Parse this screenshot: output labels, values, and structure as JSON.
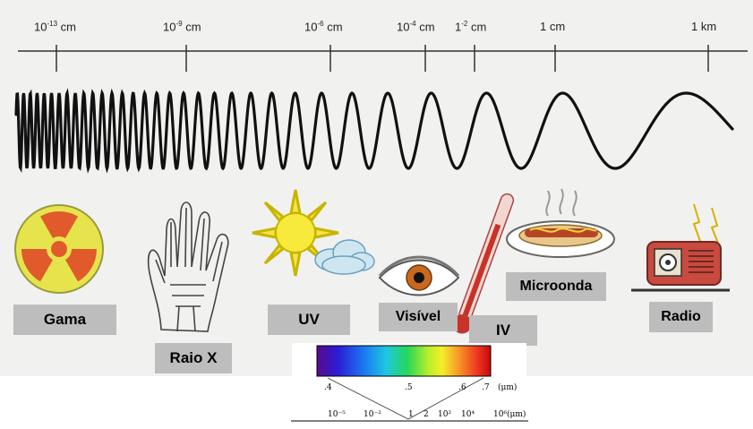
{
  "scale": {
    "ticks": [
      {
        "base": "10",
        "exp": "-13",
        "unit": "cm"
      },
      {
        "base": "10",
        "exp": "-9",
        "unit": "cm"
      },
      {
        "base": "10",
        "exp": "-6",
        "unit": "cm"
      },
      {
        "base": "10",
        "exp": "-4",
        "unit": "cm"
      },
      {
        "base": "1",
        "exp": "-2",
        "unit": "cm"
      },
      {
        "base": "1",
        "exp": "",
        "unit": "cm"
      },
      {
        "base": "1",
        "exp": "",
        "unit": "km"
      }
    ]
  },
  "bands": {
    "gamma": "Gama",
    "xray": "Raio X",
    "uv": "UV",
    "visible": "Visível",
    "ir": "IV",
    "microwave": "Microonda",
    "radio": "Radio"
  },
  "spectrum_inset": {
    "top_ticks": [
      ".4",
      ".5",
      ".6",
      ".7"
    ],
    "top_unit": "(μm)",
    "bottom_ticks": [
      "10⁻⁵",
      "10⁻²",
      "1",
      "2",
      "10²",
      "10⁴",
      "10⁶"
    ],
    "bottom_unit": "(μm)"
  },
  "colors": {
    "gamma_fill": "#e05a2b",
    "gamma_bg": "#e6e44c",
    "label_bg": "#bdbdbd"
  }
}
